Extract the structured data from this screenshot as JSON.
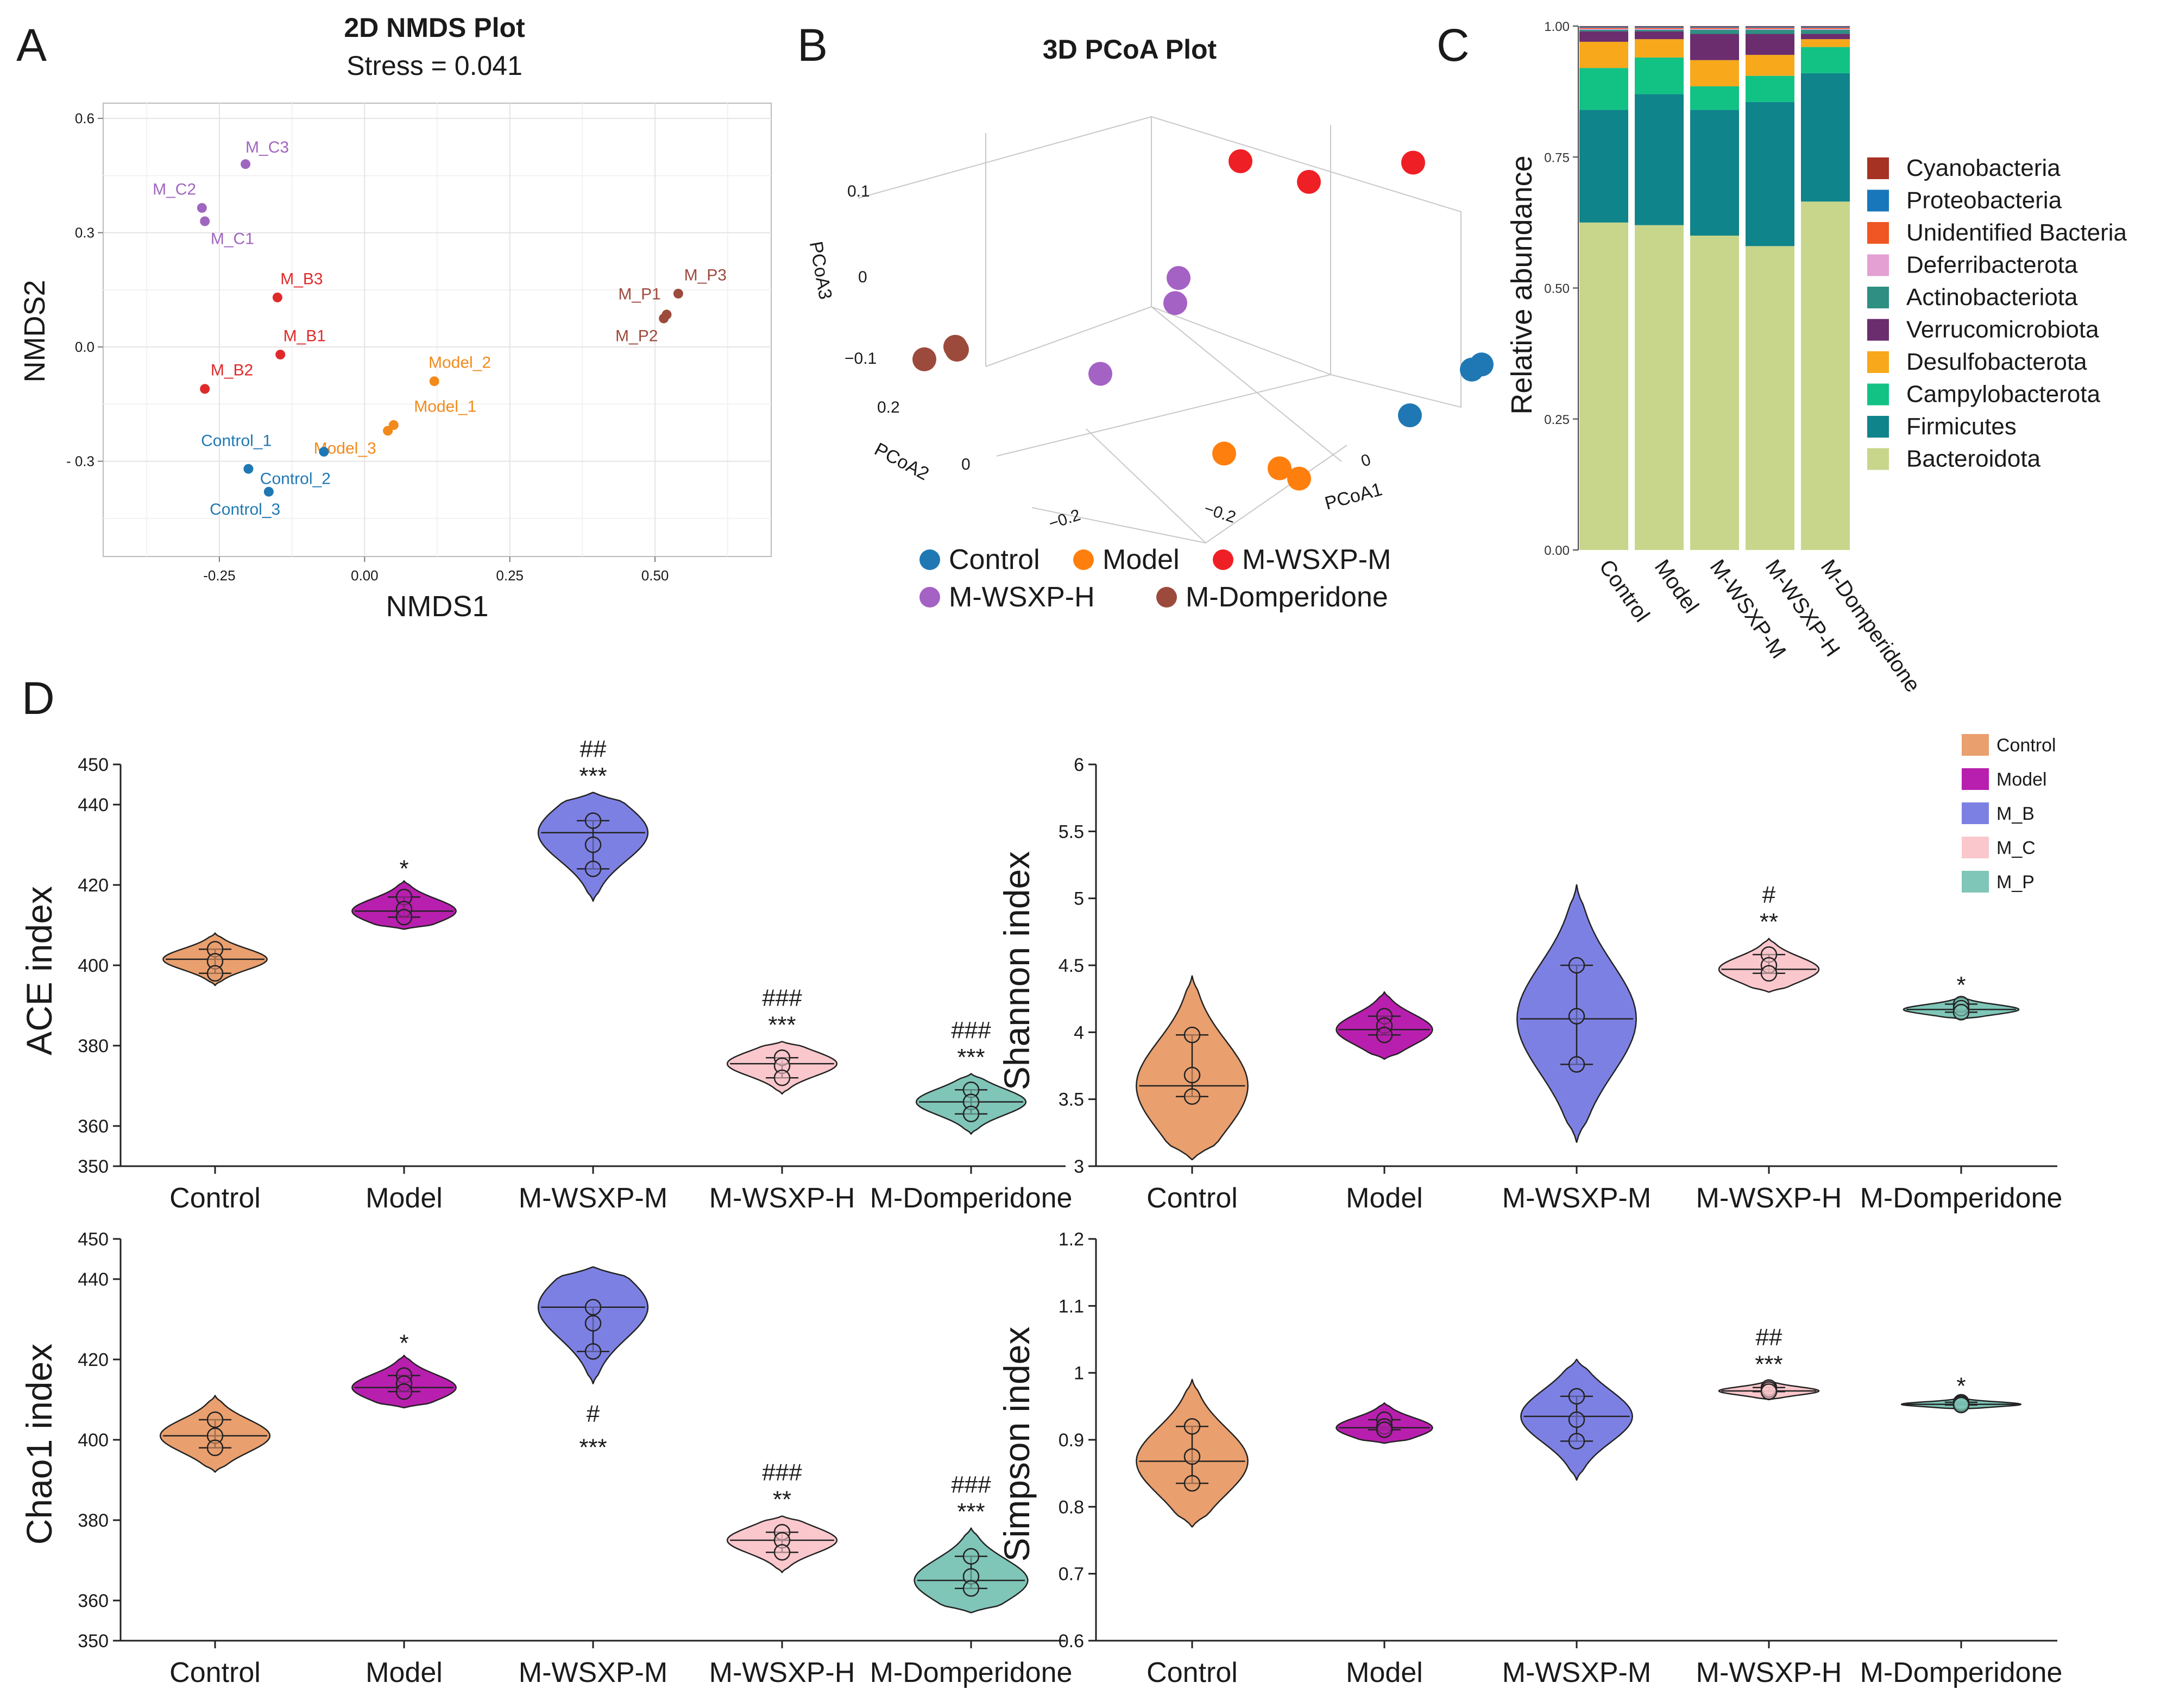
{
  "panels": {
    "A": "A",
    "B": "B",
    "C": "C",
    "D": "D"
  },
  "chart_data": [
    {
      "id": "A",
      "type": "scatter",
      "title": "2D NMDS Plot",
      "subtitle": "Stress = 0.041",
      "xlabel": "NMDS1",
      "ylabel": "NMDS2",
      "xlim": [
        -0.45,
        0.7
      ],
      "ylim": [
        -0.55,
        0.64
      ],
      "xticks": [
        -0.25,
        0.0,
        0.25,
        0.5
      ],
      "xtick_labels": [
        "-0.25",
        "0.00",
        "0.25",
        "0.50"
      ],
      "yticks": [
        0.6,
        0.3,
        0.0,
        -0.3
      ],
      "ytick_labels": [
        "0.6",
        "0.3",
        "0.0",
        "- 0.3"
      ],
      "grid": true,
      "points": [
        {
          "label": "M_C3",
          "x": -0.205,
          "y": 0.48,
          "color": "#a066bf",
          "lx": 0.0,
          "ly": 0.03,
          "anchor": "start"
        },
        {
          "label": "M_C2",
          "x": -0.28,
          "y": 0.365,
          "color": "#a066bf",
          "lx": -0.01,
          "ly": 0.035,
          "anchor": "end"
        },
        {
          "label": "M_C1",
          "x": -0.275,
          "y": 0.33,
          "color": "#a066bf",
          "lx": 0.01,
          "ly": -0.06,
          "anchor": "start"
        },
        {
          "label": "M_B3",
          "x": -0.15,
          "y": 0.13,
          "color": "#e02a2a",
          "lx": 0.005,
          "ly": 0.035,
          "anchor": "start"
        },
        {
          "label": "M_B1",
          "x": -0.145,
          "y": -0.02,
          "color": "#e02a2a",
          "lx": 0.005,
          "ly": 0.035,
          "anchor": "start"
        },
        {
          "label": "M_B2",
          "x": -0.275,
          "y": -0.11,
          "color": "#e02a2a",
          "lx": 0.01,
          "ly": 0.035,
          "anchor": "start"
        },
        {
          "label": "Model_2",
          "x": 0.12,
          "y": -0.09,
          "color": "#f28a1c",
          "lx": -0.01,
          "ly": 0.035,
          "anchor": "start"
        },
        {
          "label": "Model_1",
          "x": 0.05,
          "y": -0.205,
          "color": "#f28a1c",
          "lx": 0.035,
          "ly": 0.035,
          "anchor": "start"
        },
        {
          "label": "Model_3",
          "x": 0.04,
          "y": -0.22,
          "color": "#f28a1c",
          "lx": -0.02,
          "ly": -0.06,
          "anchor": "end"
        },
        {
          "label": "Control_1",
          "x": -0.07,
          "y": -0.275,
          "color": "#1f78b4",
          "lx": -0.09,
          "ly": 0.015,
          "anchor": "end"
        },
        {
          "label": "Control_2",
          "x": -0.2,
          "y": -0.32,
          "color": "#1f78b4",
          "lx": 0.02,
          "ly": -0.04,
          "anchor": "start"
        },
        {
          "label": "Control_3",
          "x": -0.165,
          "y": -0.38,
          "color": "#1f78b4",
          "lx": 0.02,
          "ly": -0.06,
          "anchor": "end"
        },
        {
          "label": "M_P3",
          "x": 0.54,
          "y": 0.14,
          "color": "#9c4a3c",
          "lx": 0.01,
          "ly": 0.035,
          "anchor": "start"
        },
        {
          "label": "M_P1",
          "x": 0.52,
          "y": 0.085,
          "color": "#9c4a3c",
          "lx": -0.01,
          "ly": 0.04,
          "anchor": "end"
        },
        {
          "label": "M_P2",
          "x": 0.515,
          "y": 0.075,
          "color": "#9c4a3c",
          "lx": -0.01,
          "ly": -0.06,
          "anchor": "end"
        }
      ]
    },
    {
      "id": "B",
      "type": "scatter",
      "title": "3D PCoA Plot",
      "axes": [
        "PCoA1",
        "PCoA2",
        "PCoA3"
      ],
      "ticks_pcoa3": [
        "0.1",
        "0",
        "−0.1"
      ],
      "ticks_pcoa2": [
        "0.2",
        "0"
      ],
      "ticks_pcoa1": [
        "−0.2",
        "−0.2",
        "0"
      ],
      "groups": [
        {
          "name": "Control",
          "color": "#1f78b4",
          "points": [
            [
              0.22,
              0.05,
              -0.04
            ],
            [
              0.28,
              0.06,
              0.0
            ],
            [
              0.29,
              0.06,
              0.005
            ]
          ]
        },
        {
          "name": "Model",
          "color": "#ff7f0e",
          "points": [
            [
              0.02,
              0.08,
              -0.09
            ],
            [
              0.08,
              0.07,
              -0.1
            ],
            [
              0.1,
              0.07,
              -0.11
            ]
          ]
        },
        {
          "name": "M-WSXP-M",
          "color": "#ee2025",
          "points": [
            [
              -0.02,
              0.25,
              0.12
            ],
            [
              0.05,
              0.25,
              0.1
            ],
            [
              0.15,
              0.27,
              0.11
            ]
          ]
        },
        {
          "name": "M-WSXP-H",
          "color": "#a462c4",
          "points": [
            [
              -0.05,
              0.15,
              0.05
            ],
            [
              -0.05,
              0.14,
              0.03
            ],
            [
              -0.12,
              0.12,
              -0.03
            ]
          ]
        },
        {
          "name": "M-Domperidone",
          "color": "#9c4a3c",
          "points": [
            [
              -0.28,
              0.06,
              0.01
            ],
            [
              -0.25,
              0.07,
              0.015
            ],
            [
              -0.25,
              0.065,
              0.02
            ]
          ]
        }
      ]
    },
    {
      "id": "C",
      "type": "bar",
      "stacked": true,
      "ylabel": "Relative abundance",
      "ylim": [
        0.0,
        1.0
      ],
      "yticks": [
        "0.00",
        "0.25",
        "0.50",
        "0.75",
        "1.00"
      ],
      "categories": [
        "Control",
        "Model",
        "M-WSXP-M",
        "M-WSXP-H",
        "M-Domperidone"
      ],
      "series": [
        {
          "name": "Bacteroidota",
          "color": "#c7d68b",
          "values": [
            0.625,
            0.62,
            0.6,
            0.58,
            0.665
          ]
        },
        {
          "name": "Firmicutes",
          "color": "#0f848a",
          "values": [
            0.215,
            0.25,
            0.24,
            0.275,
            0.245
          ]
        },
        {
          "name": "Campylobacterota",
          "color": "#12c285",
          "values": [
            0.08,
            0.07,
            0.045,
            0.05,
            0.05
          ]
        },
        {
          "name": "Desulfobacterota",
          "color": "#f7a81b",
          "values": [
            0.05,
            0.035,
            0.05,
            0.04,
            0.015
          ]
        },
        {
          "name": "Verrucomicrobiota",
          "color": "#6b2d6e",
          "values": [
            0.02,
            0.015,
            0.05,
            0.04,
            0.01
          ]
        },
        {
          "name": "Actinobacteriota",
          "color": "#2f8f83",
          "values": [
            0.003,
            0.003,
            0.008,
            0.008,
            0.008
          ]
        },
        {
          "name": "Deferribacterota",
          "color": "#e4a0d3",
          "values": [
            0.002,
            0.002,
            0.002,
            0.002,
            0.002
          ]
        },
        {
          "name": "Unidentified Bacteria",
          "color": "#f05623",
          "values": [
            0.002,
            0.002,
            0.002,
            0.002,
            0.002
          ]
        },
        {
          "name": "Proteobacteria",
          "color": "#1877bb",
          "values": [
            0.002,
            0.002,
            0.002,
            0.002,
            0.002
          ]
        },
        {
          "name": "Cyanobacteria",
          "color": "#a63223",
          "values": [
            0.001,
            0.001,
            0.001,
            0.001,
            0.001
          ]
        }
      ],
      "legend_order": [
        "Cyanobacteria",
        "Proteobacteria",
        "Unidentified Bacteria",
        "Deferribacterota",
        "Actinobacteriota",
        "Verrucomicrobiota",
        "Desulfobacterota",
        "Campylobacterota",
        "Firmicutes",
        "Bacteroidota"
      ]
    },
    {
      "id": "D",
      "type": "violin",
      "legend": [
        {
          "name": "Control",
          "color": "#e99f6e"
        },
        {
          "name": "Model",
          "color": "#b81fae"
        },
        {
          "name": "M_B",
          "color": "#7d80e3"
        },
        {
          "name": "M_C",
          "color": "#fac7cc"
        },
        {
          "name": "M_P",
          "color": "#7fc5b8"
        }
      ],
      "categories": [
        "Control",
        "Model",
        "M-WSXP-M",
        "M-WSXP-H",
        "M-Domperidone"
      ],
      "subplots": [
        {
          "ylabel": "ACE index",
          "ylim": [
            350,
            450
          ],
          "yticks": [
            350,
            360,
            380,
            400,
            420,
            440,
            450
          ],
          "groups": [
            {
              "points": [
                404,
                401,
                398
              ],
              "median": 401.5,
              "vmin": 395,
              "vmax": 408,
              "width": 0.55,
              "sig": [
                "",
                ""
              ]
            },
            {
              "points": [
                417,
                414,
                412
              ],
              "median": 413.5,
              "vmin": 409,
              "vmax": 421,
              "width": 0.55,
              "sig": [
                "*",
                ""
              ]
            },
            {
              "points": [
                436,
                430,
                424
              ],
              "median": 433,
              "vmin": 416,
              "vmax": 443,
              "width": 0.58,
              "sig": [
                "***",
                "##"
              ]
            },
            {
              "points": [
                377,
                375,
                372
              ],
              "median": 375.5,
              "vmin": 368,
              "vmax": 381,
              "width": 0.58,
              "sig": [
                "***",
                "###"
              ]
            },
            {
              "points": [
                369,
                366,
                363
              ],
              "median": 366,
              "vmin": 358,
              "vmax": 373,
              "width": 0.58,
              "sig": [
                "***",
                "###"
              ]
            }
          ]
        },
        {
          "ylabel": "Shannon index",
          "ylim": [
            3,
            6
          ],
          "yticks": [
            3,
            3.5,
            4,
            4.5,
            5,
            5.5,
            6
          ],
          "groups": [
            {
              "points": [
                3.98,
                3.68,
                3.52
              ],
              "median": 3.6,
              "vmin": 3.05,
              "vmax": 4.42,
              "width": 0.58,
              "sig": [
                "",
                ""
              ]
            },
            {
              "points": [
                4.12,
                4.05,
                3.98
              ],
              "median": 4.02,
              "vmin": 3.8,
              "vmax": 4.3,
              "width": 0.5,
              "sig": [
                "",
                ""
              ]
            },
            {
              "points": [
                4.5,
                4.12,
                3.76
              ],
              "median": 4.1,
              "vmin": 3.18,
              "vmax": 5.1,
              "width": 0.62,
              "sig": [
                "",
                ""
              ]
            },
            {
              "points": [
                4.58,
                4.5,
                4.44
              ],
              "median": 4.47,
              "vmin": 4.3,
              "vmax": 4.7,
              "width": 0.52,
              "sig": [
                "**",
                "#"
              ]
            },
            {
              "points": [
                4.21,
                4.18,
                4.15
              ],
              "median": 4.17,
              "vmin": 4.1,
              "vmax": 4.26,
              "width": 0.6,
              "sig": [
                "*",
                ""
              ]
            }
          ]
        },
        {
          "ylabel": "Chao1 index",
          "ylim": [
            350,
            450
          ],
          "yticks": [
            350,
            360,
            380,
            400,
            420,
            440,
            450
          ],
          "groups": [
            {
              "points": [
                405,
                401,
                398
              ],
              "median": 401,
              "vmin": 392,
              "vmax": 411,
              "width": 0.58,
              "sig": [
                "",
                ""
              ]
            },
            {
              "points": [
                416,
                414,
                412
              ],
              "median": 413,
              "vmin": 408,
              "vmax": 421,
              "width": 0.55,
              "sig": [
                "*",
                ""
              ]
            },
            {
              "points": [
                433,
                429,
                422
              ],
              "median": 433,
              "vmin": 414,
              "vmax": 443,
              "width": 0.58,
              "sig": [
                "***",
                "#"
              ],
              "sig_below": true
            },
            {
              "points": [
                377,
                375,
                372
              ],
              "median": 375,
              "vmin": 367,
              "vmax": 381,
              "width": 0.58,
              "sig": [
                "**",
                "###"
              ]
            },
            {
              "points": [
                371,
                366,
                363
              ],
              "median": 365,
              "vmin": 357,
              "vmax": 378,
              "width": 0.6,
              "sig": [
                "***",
                "###"
              ]
            }
          ]
        },
        {
          "ylabel": "Simpson index",
          "ylim": [
            0.6,
            1.2
          ],
          "yticks": [
            0.6,
            0.7,
            0.8,
            0.9,
            1,
            1.1,
            1.2
          ],
          "groups": [
            {
              "points": [
                0.92,
                0.875,
                0.835
              ],
              "median": 0.868,
              "vmin": 0.77,
              "vmax": 0.99,
              "width": 0.58,
              "sig": [
                "",
                ""
              ]
            },
            {
              "points": [
                0.93,
                0.92,
                0.915
              ],
              "median": 0.918,
              "vmin": 0.895,
              "vmax": 0.955,
              "width": 0.5,
              "sig": [
                "",
                ""
              ]
            },
            {
              "points": [
                0.965,
                0.93,
                0.898
              ],
              "median": 0.935,
              "vmin": 0.84,
              "vmax": 1.02,
              "width": 0.58,
              "sig": [
                "",
                ""
              ]
            },
            {
              "points": [
                0.978,
                0.975,
                0.972
              ],
              "median": 0.973,
              "vmin": 0.96,
              "vmax": 0.988,
              "width": 0.52,
              "sig": [
                "***",
                "##"
              ]
            },
            {
              "points": [
                0.956,
                0.954,
                0.952
              ],
              "median": 0.953,
              "vmin": 0.946,
              "vmax": 0.962,
              "width": 0.62,
              "sig": [
                "*",
                ""
              ]
            }
          ]
        }
      ]
    }
  ]
}
